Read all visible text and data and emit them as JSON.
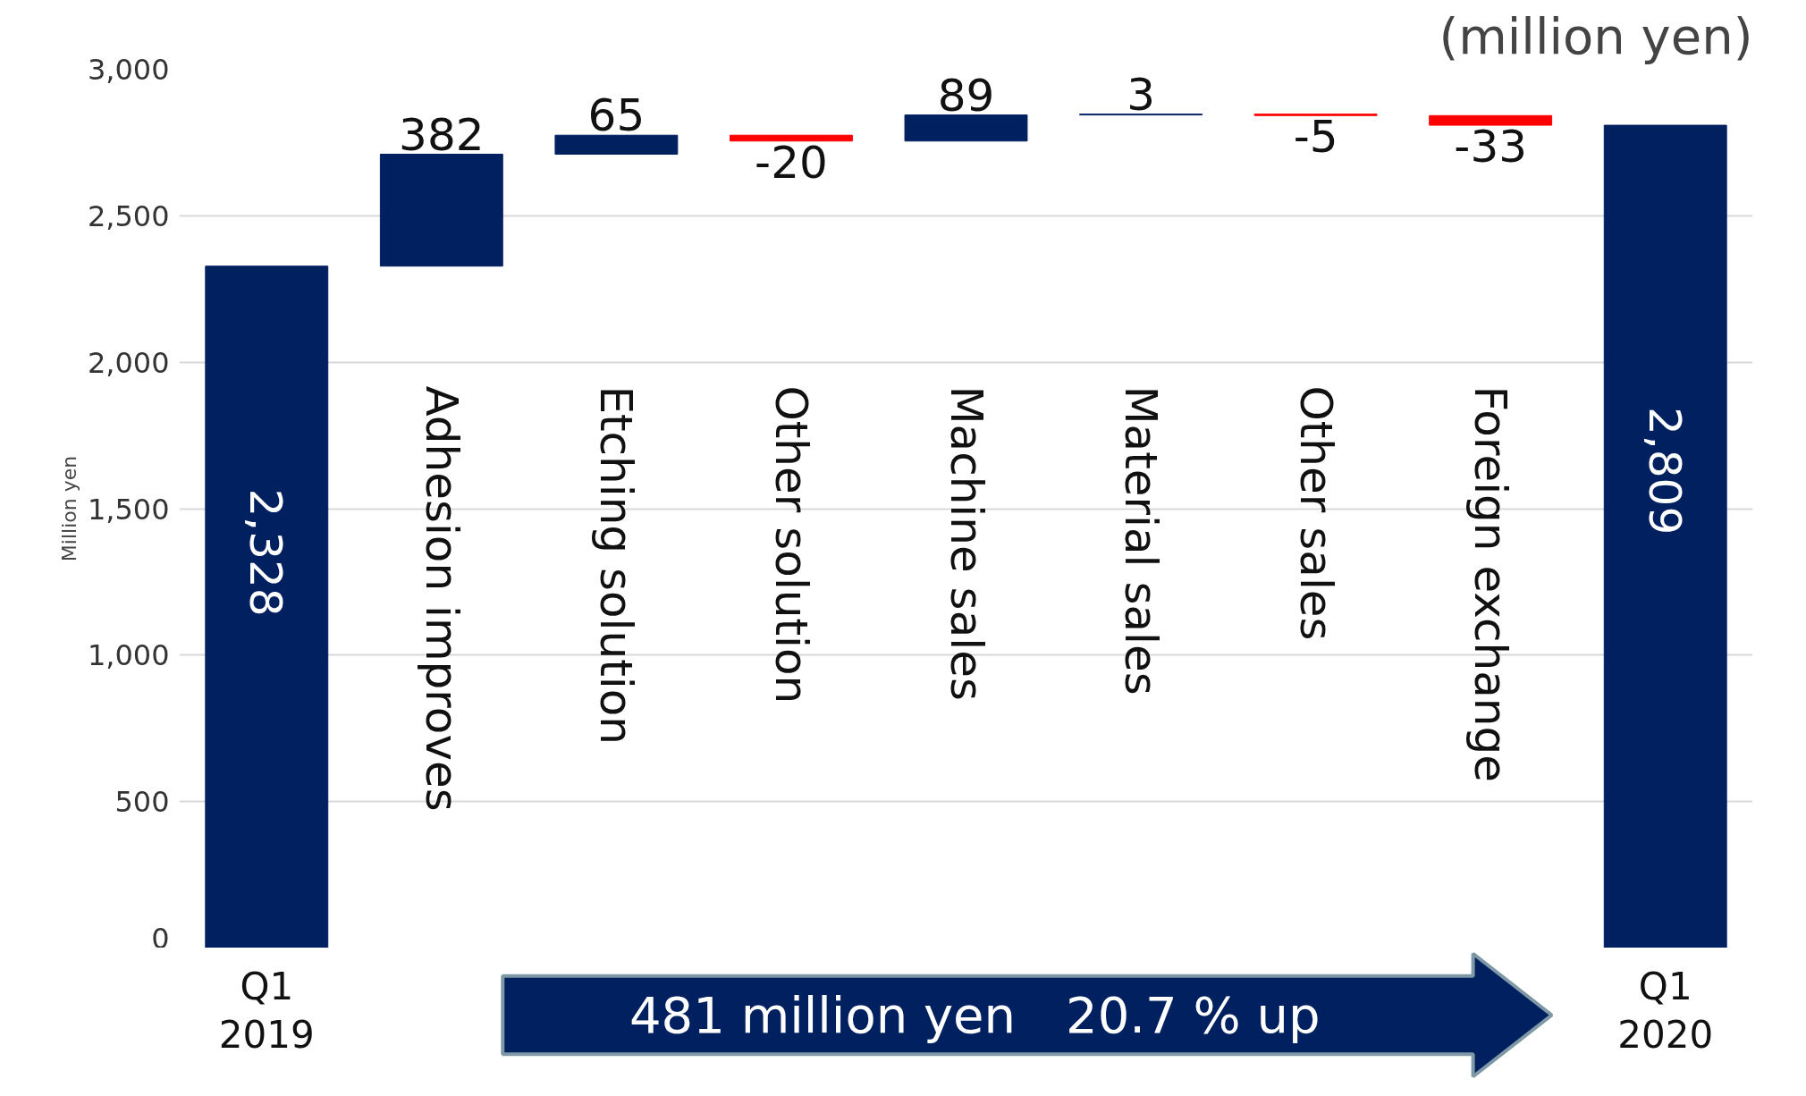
{
  "chart_data": {
    "type": "bar",
    "categories": [
      "Q1\n2019",
      "Adhesion improves",
      "Etching solution",
      "Other solution",
      "Machine sales",
      "Material sales",
      "Other sales",
      "Foreign exchange",
      "Q1\n2020"
    ],
    "values": [
      2328,
      382,
      65,
      -20,
      89,
      3,
      -5,
      -33,
      2809
    ],
    "base": [
      null,
      2328,
      2710,
      2775,
      2755,
      2844,
      2847,
      2842,
      null
    ],
    "colors": [
      "#002060",
      "#002060",
      "#002060",
      "#ff0000",
      "#002060",
      "#002060",
      "#ff0000",
      "#ff0000",
      "#002060"
    ],
    "value_labels": [
      "2,328",
      "382",
      "65",
      "-20",
      "89",
      "3",
      "-5",
      "-33",
      "2,809"
    ],
    "ylabel": "Million yen",
    "ylim": [
      0,
      3000
    ],
    "yticks": [
      {
        "value": 0,
        "label": "0"
      },
      {
        "value": 500,
        "label": "500"
      },
      {
        "value": 1000,
        "label": "1,000"
      },
      {
        "value": 1500,
        "label": "1,500"
      },
      {
        "value": 2000,
        "label": "2,000"
      },
      {
        "value": 2500,
        "label": "2,500"
      },
      {
        "value": 3000,
        "label": "3,000"
      }
    ],
    "grid": "y",
    "annotations": [
      "(million yen)",
      "481 million yen　20.7 % up"
    ]
  }
}
